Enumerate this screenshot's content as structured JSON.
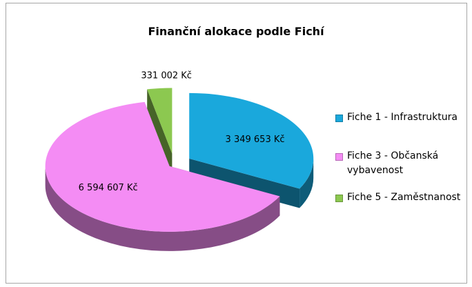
{
  "chart_data": {
    "type": "pie",
    "title": "Finanční alokace podle Fichí",
    "categories": [
      "Fiche 1 - Infrastruktura",
      "Fiche 3 - Občanská vybavenost",
      "Fiche 5 - Zaměstnanost"
    ],
    "values": [
      3349653,
      6594607,
      331002
    ],
    "value_labels": [
      "3 349 653 Kč",
      "6 594 607 Kč",
      "331 002 Kč"
    ],
    "colors": [
      "#1aa8dc",
      "#f48cf4",
      "#8cc850"
    ],
    "legend": "right"
  }
}
